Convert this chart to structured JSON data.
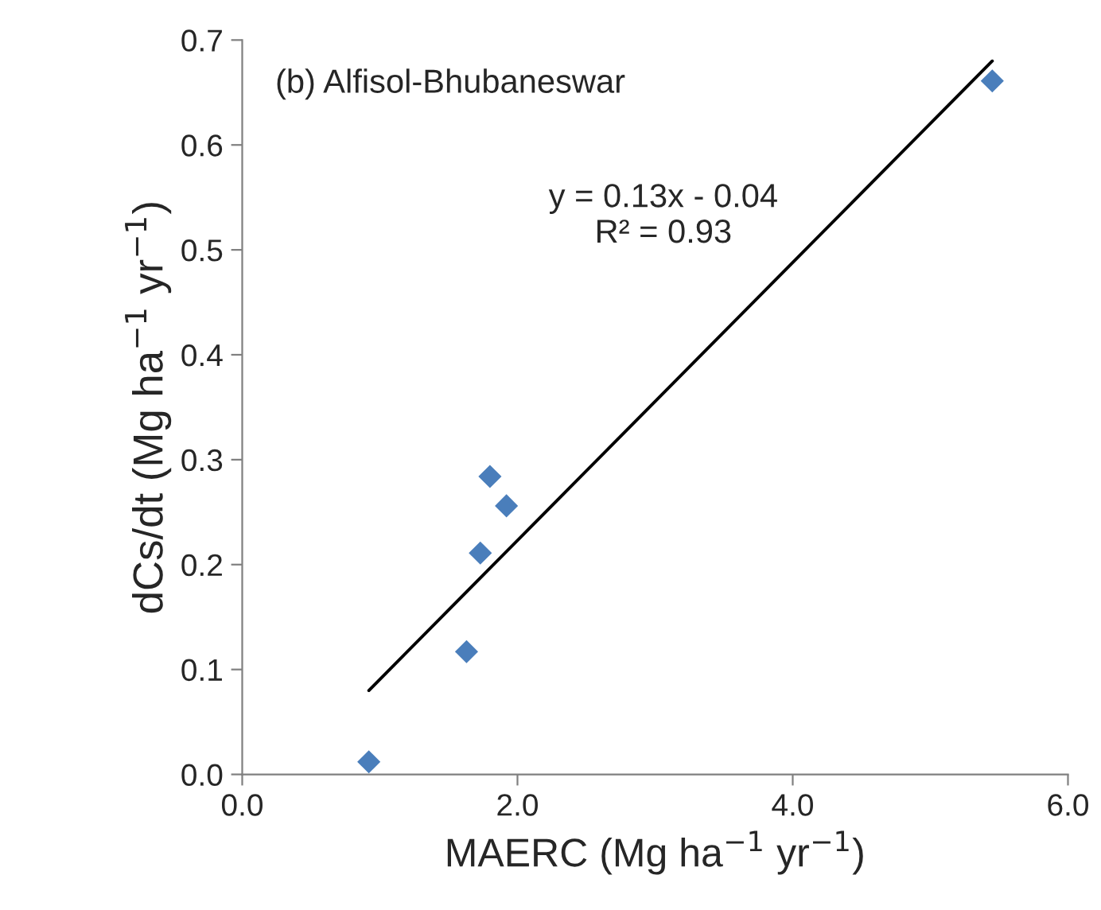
{
  "chart_data": {
    "type": "scatter",
    "title": "(b) Alfisol-Bhubaneswar",
    "xlabel": "MAERC (Mg ha$^{−1}$ yr$^{−1}$)",
    "ylabel": "dCs/dt (Mg ha$^{−1}$ yr$^{−1}$)",
    "annotations": [
      "y = 0.13x - 0.04\nR² = 0.93"
    ],
    "series": [
      {
        "color": "#4a7ebb",
        "marker": "diamond",
        "x": [
          0.92,
          1.63,
          1.73,
          1.8,
          1.92,
          5.45
        ],
        "values": [
          0.012,
          0.117,
          0.211,
          0.284,
          0.256,
          0.661
        ]
      },
      {
        "type": "line",
        "marker": "none",
        "color": "#000000",
        "x": [
          0.92,
          5.45
        ],
        "values": [
          0.08,
          0.68
        ]
      }
    ],
    "xlim": [
      0,
      6
    ],
    "ylim": [
      0,
      0.7
    ],
    "xticks": [
      {
        "value": 0,
        "label": "0.0"
      },
      {
        "value": 2,
        "label": "2.0"
      },
      {
        "value": 4,
        "label": "4.0"
      },
      {
        "value": 6,
        "label": "6.0"
      }
    ],
    "yticks": [
      {
        "value": 0,
        "label": "0.0"
      },
      0.1,
      0.2,
      0.3,
      0.4,
      0.5,
      0.6,
      0.7
    ],
    "grid": false,
    "legend": false
  }
}
